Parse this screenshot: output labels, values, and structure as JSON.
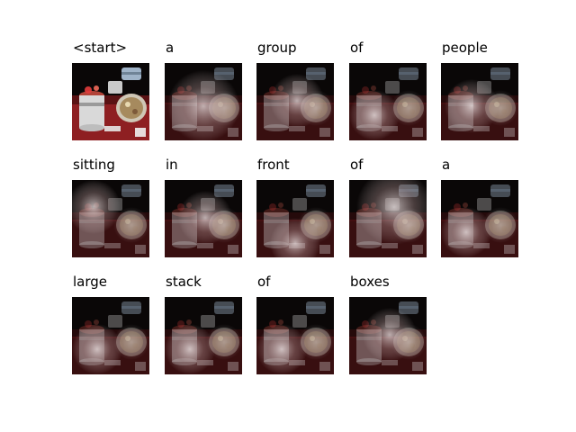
{
  "caption_words": [
    "<start>",
    "a",
    "group",
    "of",
    "people",
    "sitting",
    "in",
    "front",
    "of",
    "a",
    "large",
    "stack",
    "of",
    "boxes"
  ],
  "colors": {
    "background": "#ffffff",
    "photo_table": "#8e1f22",
    "photo_pot": "#d9d9d9",
    "attention_glow": "#f0e6e6",
    "dark_overlay": "#050505"
  },
  "attention_maps": [
    {
      "word": "<start>",
      "mode": "original-image",
      "focus": "none"
    },
    {
      "word": "a",
      "mode": "attention",
      "focus": "diffuse-center"
    },
    {
      "word": "group",
      "mode": "attention",
      "focus": "center"
    },
    {
      "word": "of",
      "mode": "attention",
      "focus": "lower-left"
    },
    {
      "word": "people",
      "mode": "attention",
      "focus": "center-left"
    },
    {
      "word": "sitting",
      "mode": "attention",
      "focus": "upper-left"
    },
    {
      "word": "in",
      "mode": "attention",
      "focus": "center"
    },
    {
      "word": "front",
      "mode": "attention",
      "focus": "bottom-center"
    },
    {
      "word": "of",
      "mode": "attention",
      "focus": "scattered"
    },
    {
      "word": "a",
      "mode": "attention",
      "focus": "lower-left"
    },
    {
      "word": "large",
      "mode": "attention",
      "focus": "lower-left"
    },
    {
      "word": "stack",
      "mode": "attention",
      "focus": "lower-left"
    },
    {
      "word": "of",
      "mode": "attention",
      "focus": "lower-left"
    },
    {
      "word": "boxes",
      "mode": "attention",
      "focus": "center"
    }
  ]
}
